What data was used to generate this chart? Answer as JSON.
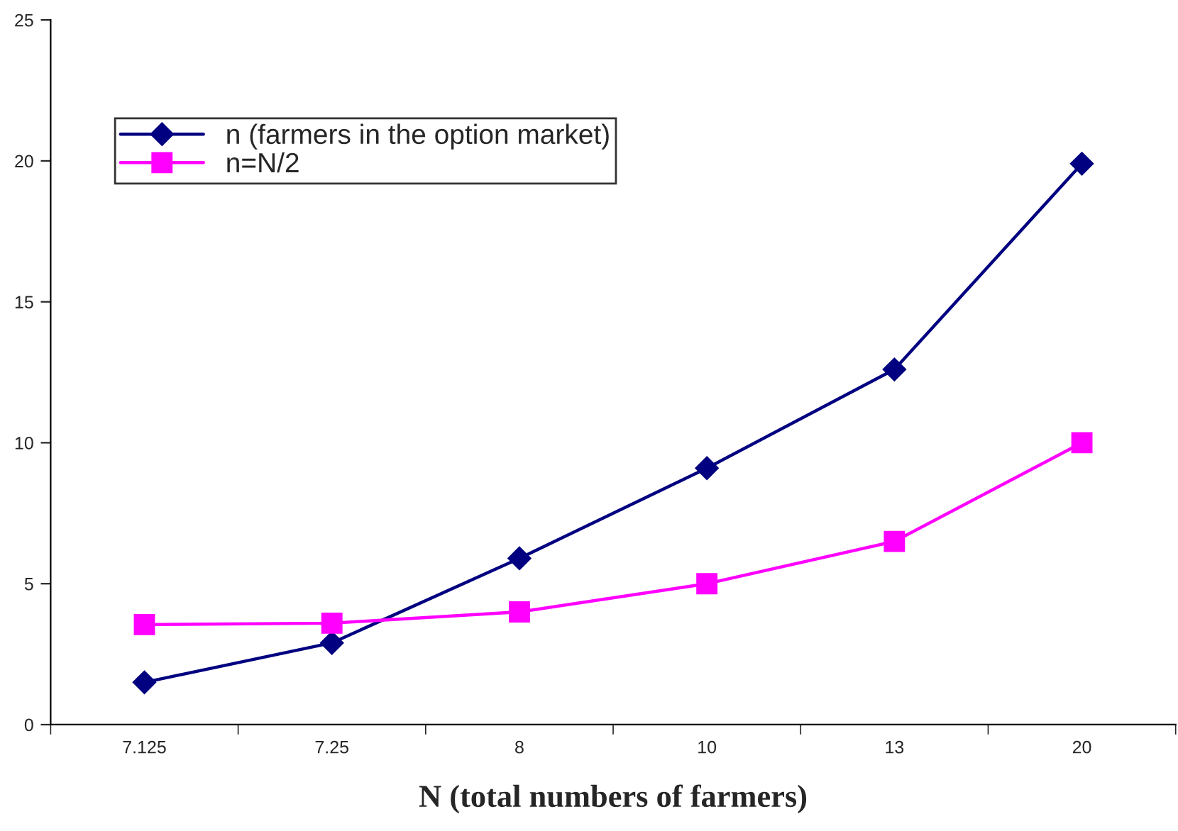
{
  "chart_data": {
    "type": "line",
    "xlabel": "N (total numbers of farmers)",
    "categories": [
      "7.125",
      "7.25",
      "8",
      "10",
      "13",
      "20"
    ],
    "series": [
      {
        "name": "n (farmers in the option market)",
        "color": "#000080",
        "marker": "diamond",
        "values": [
          1.5,
          2.9,
          5.9,
          9.1,
          12.6,
          19.9
        ]
      },
      {
        "name": "n=N/2",
        "color": "#ff00ff",
        "marker": "square",
        "values": [
          3.55,
          3.6,
          4,
          5,
          6.5,
          10
        ]
      }
    ],
    "ylim": [
      0,
      25
    ],
    "yticks": [
      0,
      5,
      10,
      15,
      20,
      25
    ],
    "grid": false,
    "legend": "top left",
    "line_style": "solid"
  }
}
